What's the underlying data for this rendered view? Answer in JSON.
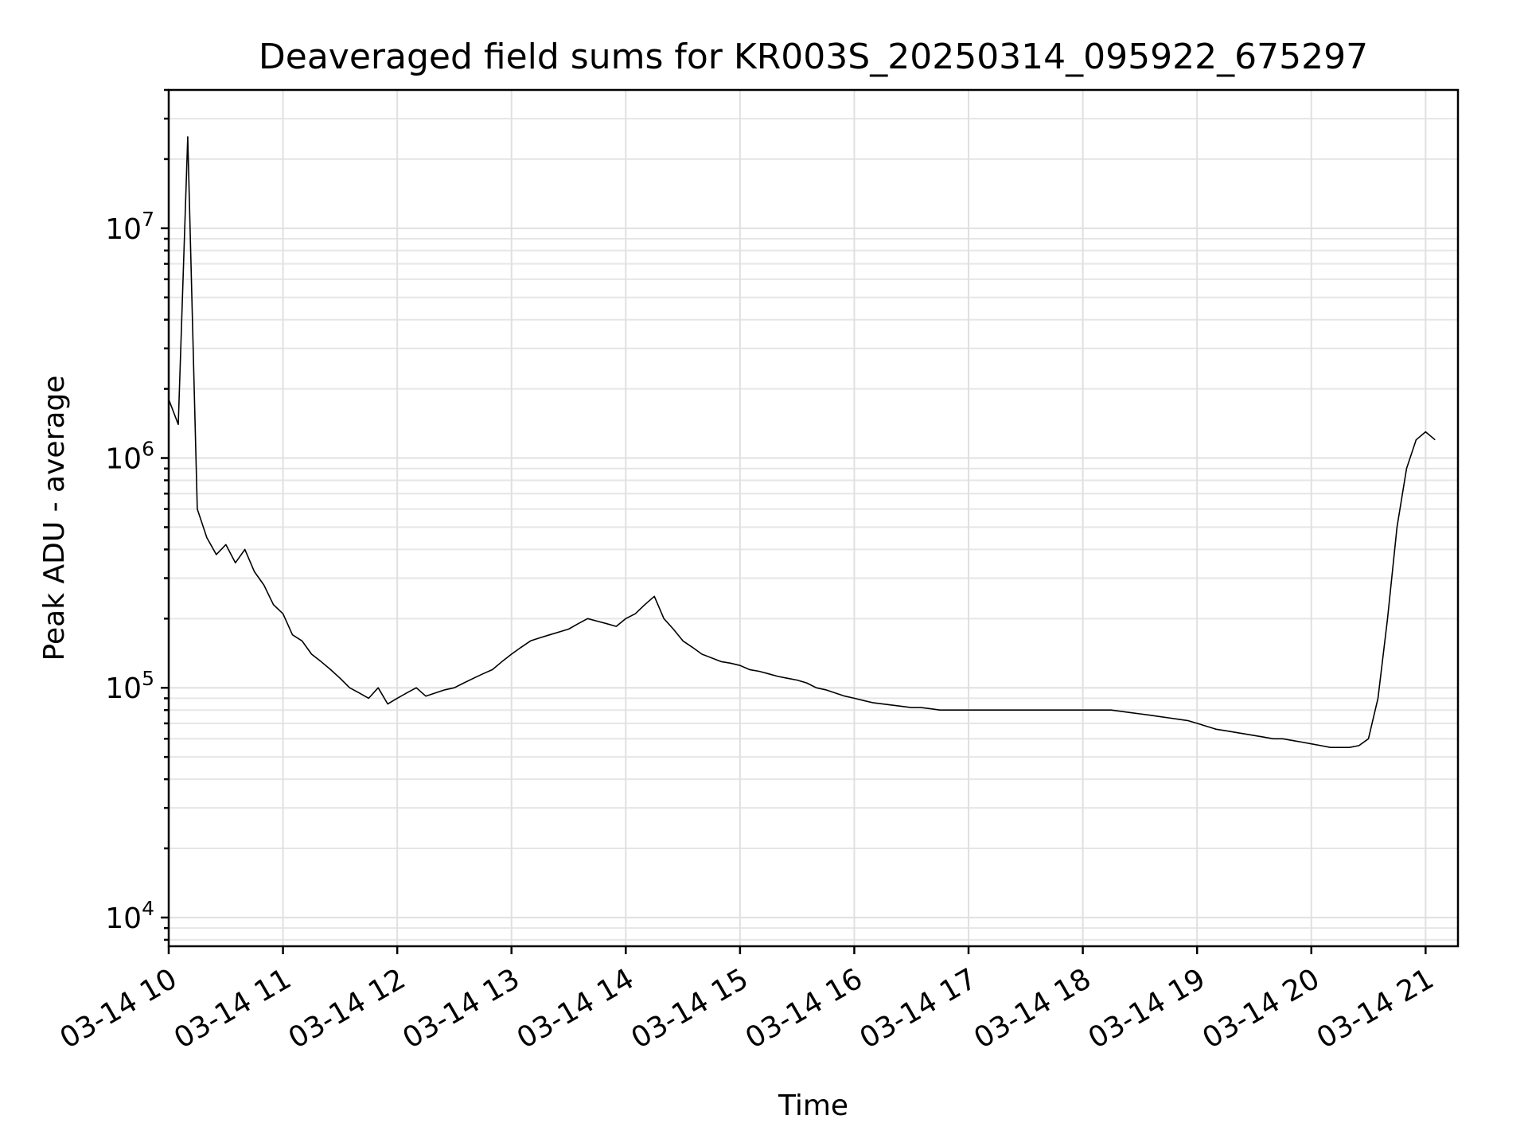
{
  "chart_data": {
    "type": "line",
    "title": "Deaveraged field sums for KR003S_20250314_095922_675297",
    "xlabel": "Time",
    "ylabel": "Peak ADU - average",
    "yscale": "log",
    "ylim": [
      7500,
      40000000
    ],
    "xlim": [
      "03-14 10:00",
      "03-14 21:00"
    ],
    "grid": true,
    "line_color": "#000000",
    "x_ticks": [
      "03-14 10",
      "03-14 11",
      "03-14 12",
      "03-14 13",
      "03-14 14",
      "03-14 15",
      "03-14 16",
      "03-14 17",
      "03-14 18",
      "03-14 19",
      "03-14 20",
      "03-14 21"
    ],
    "y_ticks": [
      {
        "base": "10",
        "exp": "4",
        "value": 10000
      },
      {
        "base": "10",
        "exp": "5",
        "value": 100000
      },
      {
        "base": "10",
        "exp": "6",
        "value": 1000000
      },
      {
        "base": "10",
        "exp": "7",
        "value": 10000000
      }
    ],
    "series": [
      {
        "x": [
          "03-14 10:00",
          "03-14 10:05",
          "03-14 10:10",
          "03-14 10:15",
          "03-14 10:20",
          "03-14 10:25",
          "03-14 10:30",
          "03-14 10:35",
          "03-14 10:40",
          "03-14 10:45",
          "03-14 10:50",
          "03-14 10:55",
          "03-14 11:00",
          "03-14 11:05",
          "03-14 11:10",
          "03-14 11:15",
          "03-14 11:20",
          "03-14 11:25",
          "03-14 11:30",
          "03-14 11:35",
          "03-14 11:40",
          "03-14 11:45",
          "03-14 11:50",
          "03-14 11:55",
          "03-14 12:00",
          "03-14 12:05",
          "03-14 12:10",
          "03-14 12:15",
          "03-14 12:20",
          "03-14 12:25",
          "03-14 12:30",
          "03-14 12:35",
          "03-14 12:40",
          "03-14 12:45",
          "03-14 12:50",
          "03-14 12:55",
          "03-14 13:00",
          "03-14 13:05",
          "03-14 13:10",
          "03-14 13:15",
          "03-14 13:20",
          "03-14 13:25",
          "03-14 13:30",
          "03-14 13:35",
          "03-14 13:40",
          "03-14 13:45",
          "03-14 13:50",
          "03-14 13:55",
          "03-14 14:00",
          "03-14 14:05",
          "03-14 14:10",
          "03-14 14:15",
          "03-14 14:20",
          "03-14 14:25",
          "03-14 14:30",
          "03-14 14:35",
          "03-14 14:40",
          "03-14 14:45",
          "03-14 14:50",
          "03-14 14:55",
          "03-14 15:00",
          "03-14 15:05",
          "03-14 15:10",
          "03-14 15:15",
          "03-14 15:20",
          "03-14 15:25",
          "03-14 15:30",
          "03-14 15:35",
          "03-14 15:40",
          "03-14 15:45",
          "03-14 15:50",
          "03-14 15:55",
          "03-14 16:00",
          "03-14 16:05",
          "03-14 16:10",
          "03-14 16:15",
          "03-14 16:20",
          "03-14 16:25",
          "03-14 16:30",
          "03-14 16:35",
          "03-14 16:40",
          "03-14 16:45",
          "03-14 16:50",
          "03-14 16:55",
          "03-14 17:00",
          "03-14 17:05",
          "03-14 17:10",
          "03-14 17:15",
          "03-14 17:20",
          "03-14 17:25",
          "03-14 17:30",
          "03-14 17:35",
          "03-14 17:40",
          "03-14 17:45",
          "03-14 17:50",
          "03-14 17:55",
          "03-14 18:00",
          "03-14 18:05",
          "03-14 18:10",
          "03-14 18:15",
          "03-14 18:20",
          "03-14 18:25",
          "03-14 18:30",
          "03-14 18:35",
          "03-14 18:40",
          "03-14 18:45",
          "03-14 18:50",
          "03-14 18:55",
          "03-14 19:00",
          "03-14 19:05",
          "03-14 19:10",
          "03-14 19:15",
          "03-14 19:20",
          "03-14 19:25",
          "03-14 19:30",
          "03-14 19:35",
          "03-14 19:40",
          "03-14 19:45",
          "03-14 19:50",
          "03-14 19:55",
          "03-14 20:00",
          "03-14 20:05",
          "03-14 20:10",
          "03-14 20:15",
          "03-14 20:20",
          "03-14 20:25",
          "03-14 20:30",
          "03-14 20:35",
          "03-14 20:40",
          "03-14 20:45",
          "03-14 20:50",
          "03-14 20:55",
          "03-14 21:00",
          "03-14 21:05"
        ],
        "y": [
          1800000,
          1400000,
          25000000,
          600000,
          450000,
          380000,
          420000,
          350000,
          400000,
          320000,
          280000,
          230000,
          210000,
          170000,
          160000,
          140000,
          130000,
          120000,
          110000,
          100000,
          95000,
          90000,
          100000,
          85000,
          90000,
          95000,
          100000,
          92000,
          95000,
          98000,
          100000,
          105000,
          110000,
          115000,
          120000,
          130000,
          140000,
          150000,
          160000,
          165000,
          170000,
          175000,
          180000,
          190000,
          200000,
          195000,
          190000,
          185000,
          200000,
          210000,
          230000,
          250000,
          200000,
          180000,
          160000,
          150000,
          140000,
          135000,
          130000,
          128000,
          125000,
          120000,
          118000,
          115000,
          112000,
          110000,
          108000,
          105000,
          100000,
          98000,
          95000,
          92000,
          90000,
          88000,
          86000,
          85000,
          84000,
          83000,
          82000,
          82000,
          81000,
          80000,
          80000,
          80000,
          80000,
          80000,
          80000,
          80000,
          80000,
          80000,
          80000,
          80000,
          80000,
          80000,
          80000,
          80000,
          80000,
          80000,
          80000,
          80000,
          79000,
          78000,
          77000,
          76000,
          75000,
          74000,
          73000,
          72000,
          70000,
          68000,
          66000,
          65000,
          64000,
          63000,
          62000,
          61000,
          60000,
          60000,
          59000,
          58000,
          57000,
          56000,
          55000,
          55000,
          55000,
          56000,
          60000,
          90000,
          200000,
          500000,
          900000,
          1200000,
          1300000,
          1200000
        ]
      }
    ]
  }
}
